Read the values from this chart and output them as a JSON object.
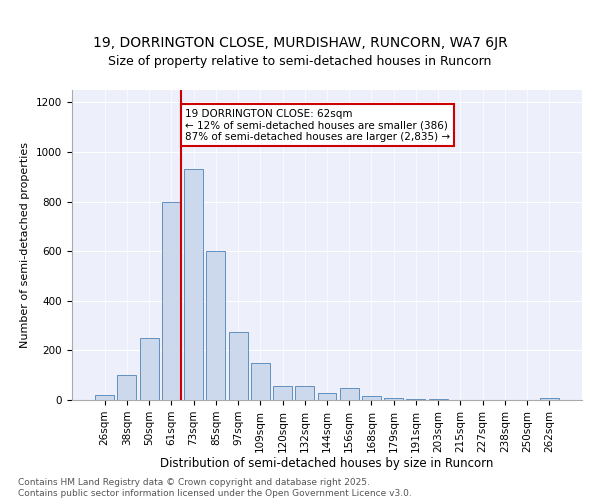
{
  "title1": "19, DORRINGTON CLOSE, MURDISHAW, RUNCORN, WA7 6JR",
  "title2": "Size of property relative to semi-detached houses in Runcorn",
  "xlabel": "Distribution of semi-detached houses by size in Runcorn",
  "ylabel": "Number of semi-detached properties",
  "categories": [
    "26sqm",
    "38sqm",
    "50sqm",
    "61sqm",
    "73sqm",
    "85sqm",
    "97sqm",
    "109sqm",
    "120sqm",
    "132sqm",
    "144sqm",
    "156sqm",
    "168sqm",
    "179sqm",
    "191sqm",
    "203sqm",
    "215sqm",
    "227sqm",
    "238sqm",
    "250sqm",
    "262sqm"
  ],
  "values": [
    20,
    100,
    250,
    800,
    930,
    600,
    275,
    150,
    58,
    55,
    30,
    50,
    15,
    10,
    5,
    3,
    2,
    1,
    1,
    0,
    8
  ],
  "bar_color": "#ccd9ed",
  "bar_edge_color": "#6090c0",
  "vline_index": 3.45,
  "annotation_title": "19 DORRINGTON CLOSE: 62sqm",
  "annotation_line1": "← 12% of semi-detached houses are smaller (386)",
  "annotation_line2": "87% of semi-detached houses are larger (2,835) →",
  "annotation_box_color": "#ffffff",
  "annotation_box_edge": "#cc0000",
  "vline_color": "#cc0000",
  "ylim": [
    0,
    1250
  ],
  "yticks": [
    0,
    200,
    400,
    600,
    800,
    1000,
    1200
  ],
  "footer1": "Contains HM Land Registry data © Crown copyright and database right 2025.",
  "footer2": "Contains public sector information licensed under the Open Government Licence v3.0.",
  "background_color": "#edf0fb",
  "title1_fontsize": 10,
  "title2_fontsize": 9,
  "xlabel_fontsize": 8.5,
  "ylabel_fontsize": 8,
  "tick_fontsize": 7.5,
  "annot_fontsize": 7.5,
  "footer_fontsize": 6.5
}
